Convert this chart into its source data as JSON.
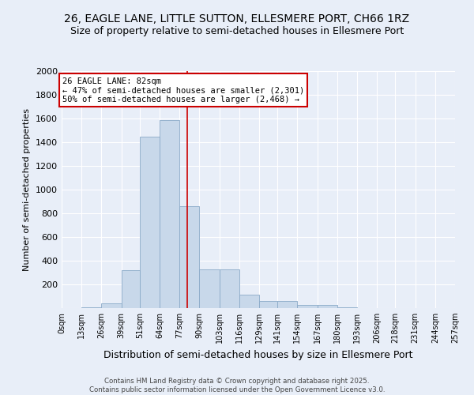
{
  "title1": "26, EAGLE LANE, LITTLE SUTTON, ELLESMERE PORT, CH66 1RZ",
  "title2": "Size of property relative to semi-detached houses in Ellesmere Port",
  "xlabel": "Distribution of semi-detached houses by size in Ellesmere Port",
  "ylabel": "Number of semi-detached properties",
  "footer1": "Contains HM Land Registry data © Crown copyright and database right 2025.",
  "footer2": "Contains public sector information licensed under the Open Government Licence v3.0.",
  "bin_edges": [
    0,
    13,
    26,
    39,
    51,
    64,
    77,
    90,
    103,
    116,
    129,
    141,
    154,
    167,
    180,
    193,
    206,
    218,
    231,
    244,
    257
  ],
  "bin_labels": [
    "0sqm",
    "13sqm",
    "26sqm",
    "39sqm",
    "51sqm",
    "64sqm",
    "77sqm",
    "90sqm",
    "103sqm",
    "116sqm",
    "129sqm",
    "141sqm",
    "154sqm",
    "167sqm",
    "180sqm",
    "193sqm",
    "206sqm",
    "218sqm",
    "231sqm",
    "244sqm",
    "257sqm"
  ],
  "bar_heights": [
    3,
    10,
    40,
    320,
    1450,
    1590,
    860,
    330,
    330,
    115,
    60,
    60,
    25,
    25,
    10,
    3,
    3,
    3,
    3,
    3
  ],
  "bar_color": "#c8d8ea",
  "bar_edge_color": "#8aaac8",
  "property_value": 82,
  "vline_color": "#cc0000",
  "annotation_box_color": "#cc0000",
  "annotation_line1": "26 EAGLE LANE: 82sqm",
  "annotation_line2": "← 47% of semi-detached houses are smaller (2,301)",
  "annotation_line3": "50% of semi-detached houses are larger (2,468) →",
  "ylim": [
    0,
    2000
  ],
  "yticks": [
    0,
    200,
    400,
    600,
    800,
    1000,
    1200,
    1400,
    1600,
    1800,
    2000
  ],
  "background_color": "#e8eef8",
  "grid_color": "#d0d8e8",
  "title_fontsize": 10,
  "subtitle_fontsize": 9,
  "annotation_fontsize": 7.5
}
